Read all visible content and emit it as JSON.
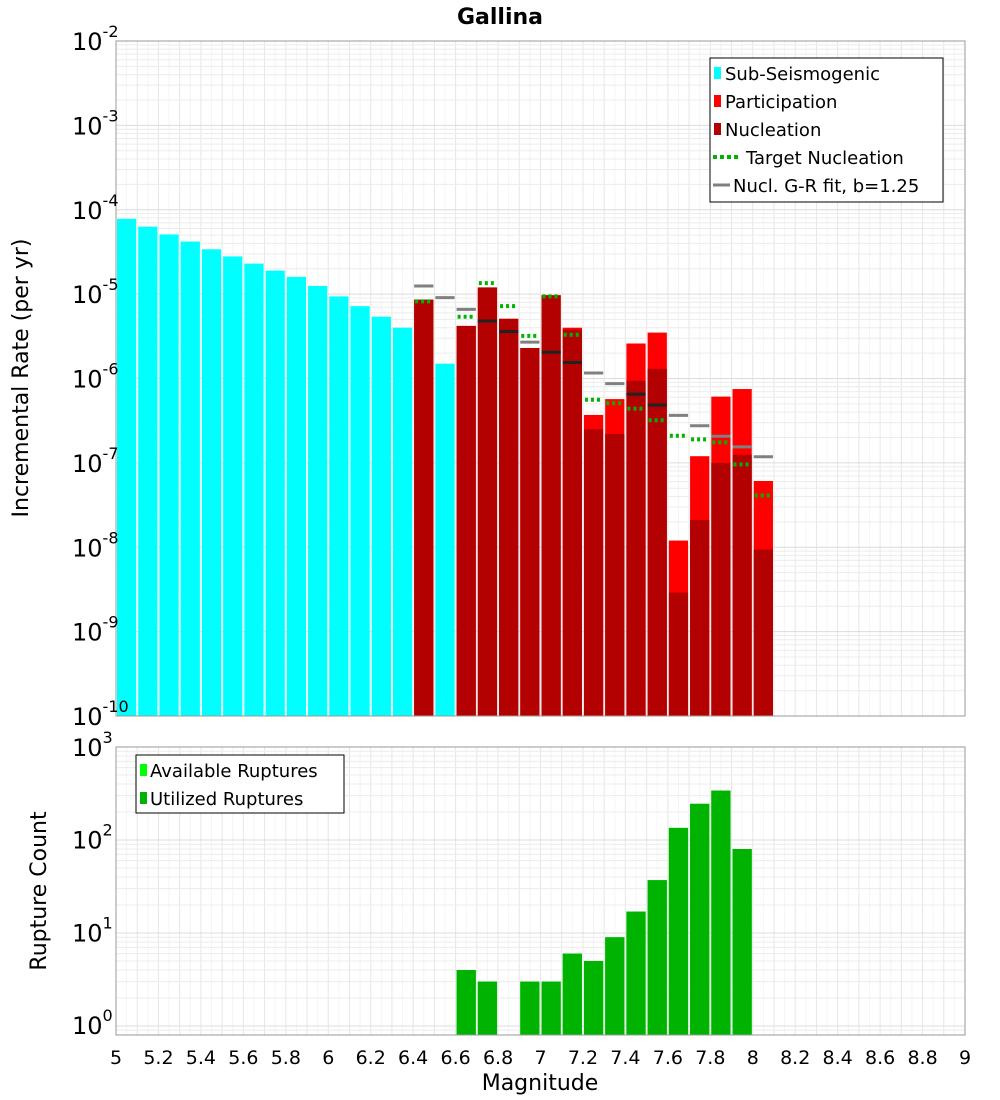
{
  "chart_data": [
    {
      "type": "bar",
      "title": "Gallina",
      "xlabel": "",
      "ylabel": "Incremental Rate (per yr)",
      "yscale": "log",
      "ylim": [
        1e-10,
        0.01
      ],
      "xlim": [
        5,
        9
      ],
      "grid": true,
      "legend_position": "top-right",
      "y_tick_labels": [
        {
          "base": "10",
          "exp": "-10"
        },
        {
          "base": "10",
          "exp": "-9"
        },
        {
          "base": "10",
          "exp": "-8"
        },
        {
          "base": "10",
          "exp": "-7"
        },
        {
          "base": "10",
          "exp": "-6"
        },
        {
          "base": "10",
          "exp": "-5"
        },
        {
          "base": "10",
          "exp": "-4"
        },
        {
          "base": "10",
          "exp": "-3"
        },
        {
          "base": "10",
          "exp": "-2"
        }
      ],
      "series": [
        {
          "name": "Sub-Seismogenic",
          "color": "#00ffff",
          "x": [
            5.05,
            5.15,
            5.25,
            5.35,
            5.45,
            5.55,
            5.65,
            5.75,
            5.85,
            5.95,
            6.05,
            6.15,
            6.25,
            6.35,
            6.55
          ],
          "values": [
            7.8e-05,
            6.3e-05,
            5.1e-05,
            4.2e-05,
            3.4e-05,
            2.8e-05,
            2.3e-05,
            1.9e-05,
            1.6e-05,
            1.25e-05,
            9.4e-06,
            7.2e-06,
            5.4e-06,
            4e-06,
            1.5e-06
          ]
        },
        {
          "name": "Participation",
          "color": "#ff0000",
          "x": [
            6.45,
            6.65,
            6.75,
            6.85,
            6.95,
            7.05,
            7.15,
            7.25,
            7.35,
            7.45,
            7.55,
            7.65,
            7.75,
            7.85,
            7.95,
            8.05
          ],
          "values": [
            8.6e-06,
            4.2e-06,
            1.2e-05,
            5.1e-06,
            2.3e-06,
            9.7e-06,
            4e-06,
            3.7e-07,
            5.7e-07,
            2.6e-06,
            3.5e-06,
            1.2e-08,
            1.2e-07,
            6.1e-07,
            7.5e-07,
            6.1e-08
          ]
        },
        {
          "name": "Nucleation",
          "color": "#b30000",
          "x": [
            6.45,
            6.65,
            6.75,
            6.85,
            6.95,
            7.05,
            7.15,
            7.25,
            7.35,
            7.45,
            7.55,
            7.65,
            7.75,
            7.85,
            7.95,
            8.05
          ],
          "values": [
            8.6e-06,
            4.2e-06,
            1.2e-05,
            5.1e-06,
            2.3e-06,
            9.7e-06,
            3.8e-06,
            2.5e-07,
            2.2e-07,
            9.4e-07,
            1.3e-06,
            2.9e-09,
            2.1e-08,
            1e-07,
            1.25e-07,
            9.4e-09
          ]
        },
        {
          "name": "Target Nucleation",
          "color": "#00b300",
          "style": "dotted",
          "x": [
            6.45,
            6.55,
            6.65,
            6.75,
            6.85,
            6.95,
            7.05,
            7.15,
            7.25,
            7.35,
            7.45,
            7.55,
            7.65,
            7.75,
            7.85,
            7.95,
            8.05
          ],
          "values": [
            8.2e-06,
            null,
            5.4e-06,
            1.35e-05,
            7.2e-06,
            3.2e-06,
            9.4e-06,
            3.3e-06,
            5.6e-07,
            5.1e-07,
            4.4e-07,
            3.2e-07,
            2.1e-07,
            1.9e-07,
            1.75e-07,
            9.6e-08,
            4.1e-08
          ]
        },
        {
          "name": "Nucl. G-R fit, b=1.25",
          "color": "#808080",
          "style": "solid",
          "x": [
            6.45,
            6.55,
            6.65,
            6.75,
            6.85,
            6.95,
            7.05,
            7.15,
            7.25,
            7.35,
            7.45,
            7.55,
            7.65,
            7.75,
            7.85,
            7.95,
            8.05
          ],
          "values": [
            1.25e-05,
            9.1e-06,
            6.6e-06,
            4.8e-06,
            3.6e-06,
            2.7e-06,
            2.05e-06,
            1.55e-06,
            1.16e-06,
            8.7e-07,
            6.5e-07,
            4.85e-07,
            3.65e-07,
            2.75e-07,
            2.07e-07,
            1.55e-07,
            1.18e-07
          ]
        }
      ]
    },
    {
      "type": "bar",
      "title": "",
      "xlabel": "Magnitude",
      "ylabel": "Rupture Count",
      "yscale": "log",
      "ylim": [
        0.8,
        1000
      ],
      "xlim": [
        5,
        9
      ],
      "grid": true,
      "legend_position": "top-left",
      "x_tick_labels": [
        "5",
        "5.2",
        "5.4",
        "5.6",
        "5.8",
        "6",
        "6.2",
        "6.4",
        "6.6",
        "6.8",
        "7",
        "7.2",
        "7.4",
        "7.6",
        "7.8",
        "8",
        "8.2",
        "8.4",
        "8.6",
        "8.8",
        "9"
      ],
      "y_tick_labels": [
        {
          "base": "10",
          "exp": "0"
        },
        {
          "base": "10",
          "exp": "1"
        },
        {
          "base": "10",
          "exp": "2"
        },
        {
          "base": "10",
          "exp": "3"
        }
      ],
      "series": [
        {
          "name": "Available Ruptures",
          "color": "#00ff00",
          "x": [
            6.65,
            6.75,
            6.95,
            7.05,
            7.15,
            7.25,
            7.35,
            7.45,
            7.55,
            7.65,
            7.75,
            7.85,
            7.95
          ],
          "values": [
            4,
            3,
            3,
            3,
            6,
            5,
            9,
            17,
            37,
            135,
            245,
            340,
            80
          ]
        },
        {
          "name": "Utilized Ruptures",
          "color": "#00b300",
          "x": [
            6.65,
            6.75,
            6.95,
            7.05,
            7.15,
            7.25,
            7.35,
            7.45,
            7.55,
            7.65,
            7.75,
            7.85,
            7.95
          ],
          "values": [
            4,
            3,
            3,
            3,
            6,
            5,
            9,
            17,
            37,
            135,
            245,
            340,
            80
          ]
        }
      ]
    }
  ]
}
